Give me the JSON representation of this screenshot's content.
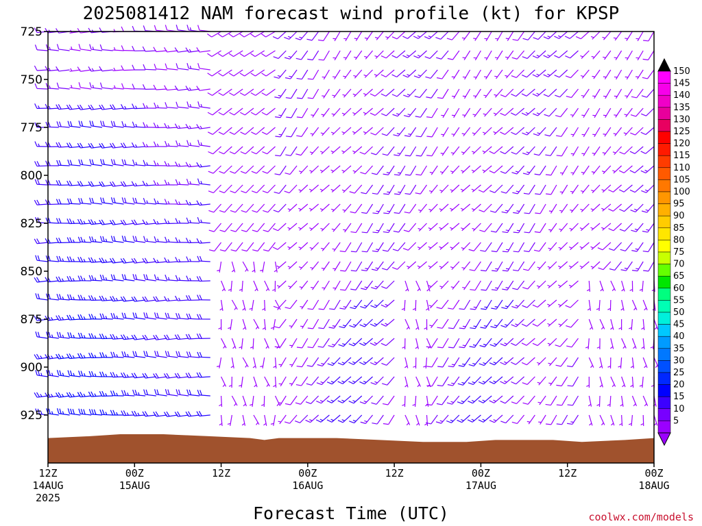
{
  "chart_data": {
    "type": "wind-barb-time-height",
    "title": "2025081412 NAM forecast wind profile (kt) for KPSP",
    "xlabel": "Forecast Time (UTC)",
    "ylabel": "",
    "units": "kt",
    "y_axis": {
      "reversed": true,
      "range": [
        725,
        950
      ],
      "ticks": [
        "725",
        "750",
        "775",
        "800",
        "825",
        "850",
        "875",
        "900",
        "925"
      ]
    },
    "x_axis": {
      "range_hours": [
        0,
        84
      ],
      "ticks": [
        {
          "hour": 0,
          "l1": "12Z",
          "l2": "14AUG",
          "l3": "2025"
        },
        {
          "hour": 12,
          "l1": "00Z",
          "l2": "15AUG",
          "l3": ""
        },
        {
          "hour": 24,
          "l1": "12Z",
          "l2": "",
          "l3": ""
        },
        {
          "hour": 36,
          "l1": "00Z",
          "l2": "16AUG",
          "l3": ""
        },
        {
          "hour": 48,
          "l1": "12Z",
          "l2": "",
          "l3": ""
        },
        {
          "hour": 60,
          "l1": "00Z",
          "l2": "17AUG",
          "l3": ""
        },
        {
          "hour": 72,
          "l1": "12Z",
          "l2": "",
          "l3": ""
        },
        {
          "hour": 84,
          "l1": "00Z",
          "l2": "18AUG",
          "l3": ""
        }
      ]
    },
    "colorbar": {
      "labels": [
        "150",
        "145",
        "140",
        "135",
        "130",
        "125",
        "120",
        "115",
        "110",
        "105",
        "100",
        "95",
        "90",
        "85",
        "80",
        "75",
        "70",
        "65",
        "60",
        "55",
        "50",
        "45",
        "40",
        "35",
        "30",
        "25",
        "20",
        "15",
        "10",
        "5"
      ],
      "colors": [
        "#ff00ff",
        "#f700ea",
        "#f000c8",
        "#e8009c",
        "#e80060",
        "#ff0000",
        "#ff1a00",
        "#ff3c00",
        "#ff5a00",
        "#ff7800",
        "#ff9600",
        "#ffb000",
        "#ffcc00",
        "#ffe600",
        "#ffff00",
        "#c8ff00",
        "#64ff00",
        "#00e600",
        "#00ff7f",
        "#00ffb4",
        "#00f0dc",
        "#00c8ff",
        "#009bff",
        "#0078ff",
        "#0050ff",
        "#0028ff",
        "#0000ff",
        "#3c00ff",
        "#7800ff",
        "#9b00ff"
      ]
    },
    "levels_hpa": [
      725,
      735,
      745,
      755,
      765,
      775,
      785,
      795,
      805,
      815,
      825,
      835,
      845,
      855,
      865,
      875,
      885,
      895,
      905,
      915,
      925
    ],
    "time_step_hours": 1.5,
    "wind_regimes": [
      {
        "name": "westerly",
        "hours": [
          0,
          24
        ],
        "dir_deg": 270,
        "speed_kt": [
          15,
          25
        ]
      },
      {
        "name": "transition",
        "hours": [
          24,
          33
        ],
        "dir_deg": 180,
        "speed_kt": [
          5,
          10
        ]
      },
      {
        "name": "southwesterly",
        "hours": [
          33,
          84
        ],
        "dir_deg": 225,
        "speed_kt": [
          5,
          15
        ]
      }
    ],
    "terrain_surface_hpa": [
      {
        "hour": 0,
        "p": 937
      },
      {
        "hour": 6,
        "p": 936
      },
      {
        "hour": 10,
        "p": 935
      },
      {
        "hour": 16,
        "p": 935
      },
      {
        "hour": 22,
        "p": 936
      },
      {
        "hour": 28,
        "p": 937
      },
      {
        "hour": 30,
        "p": 938
      },
      {
        "hour": 32,
        "p": 937
      },
      {
        "hour": 40,
        "p": 937
      },
      {
        "hour": 46,
        "p": 938
      },
      {
        "hour": 52,
        "p": 939
      },
      {
        "hour": 58,
        "p": 939
      },
      {
        "hour": 62,
        "p": 938
      },
      {
        "hour": 66,
        "p": 938
      },
      {
        "hour": 70,
        "p": 938
      },
      {
        "hour": 74,
        "p": 939
      },
      {
        "hour": 80,
        "p": 938
      },
      {
        "hour": 84,
        "p": 937
      }
    ],
    "terrain_color": "#a0522d"
  },
  "credit": "coolwx.com/models"
}
